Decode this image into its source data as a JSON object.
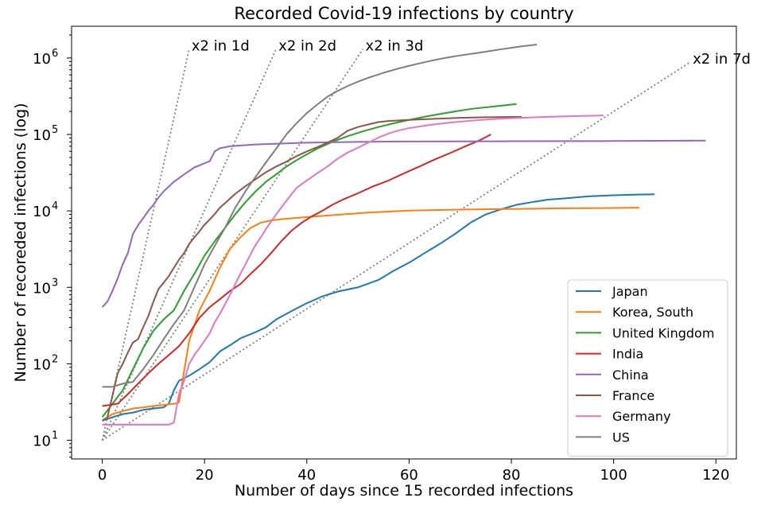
{
  "chart_data": {
    "type": "line",
    "title": "Recorded Covid-19 infections by country",
    "xlabel": "Number of days since 15 recorded infections",
    "ylabel": "Number of recoreded infections (log)",
    "yscale": "log",
    "xlim": [
      -6,
      124
    ],
    "ylim": [
      5.7,
      2600000
    ],
    "x_ticks": [
      0,
      20,
      40,
      60,
      80,
      100,
      120
    ],
    "x_tick_labels": [
      "0",
      "20",
      "40",
      "60",
      "80",
      "100",
      "120"
    ],
    "y_ticks": [
      10,
      100,
      1000,
      10000,
      100000,
      1000000
    ],
    "y_tick_labels": [
      {
        "base": "10",
        "exp": "1"
      },
      {
        "base": "10",
        "exp": "2"
      },
      {
        "base": "10",
        "exp": "3"
      },
      {
        "base": "10",
        "exp": "4"
      },
      {
        "base": "10",
        "exp": "5"
      },
      {
        "base": "10",
        "exp": "6"
      }
    ],
    "grid": false,
    "legend_position": "bottom-right",
    "series": [
      {
        "name": "Japan",
        "color": "#1f77b4",
        "points": [
          [
            0,
            18
          ],
          [
            2,
            20
          ],
          [
            4,
            22
          ],
          [
            6,
            23
          ],
          [
            8,
            25
          ],
          [
            10,
            26
          ],
          [
            12,
            27
          ],
          [
            13,
            30
          ],
          [
            14,
            45
          ],
          [
            15,
            60
          ],
          [
            17,
            70
          ],
          [
            19,
            85
          ],
          [
            21,
            105
          ],
          [
            23,
            145
          ],
          [
            25,
            175
          ],
          [
            27,
            215
          ],
          [
            30,
            260
          ],
          [
            32,
            300
          ],
          [
            34,
            380
          ],
          [
            36,
            450
          ],
          [
            38,
            530
          ],
          [
            40,
            620
          ],
          [
            43,
            760
          ],
          [
            46,
            880
          ],
          [
            50,
            1000
          ],
          [
            54,
            1250
          ],
          [
            57,
            1650
          ],
          [
            60,
            2100
          ],
          [
            63,
            2800
          ],
          [
            66,
            3700
          ],
          [
            69,
            5000
          ],
          [
            72,
            7000
          ],
          [
            75,
            9000
          ],
          [
            78,
            10500
          ],
          [
            81,
            12000
          ],
          [
            84,
            13000
          ],
          [
            87,
            14000
          ],
          [
            90,
            14500
          ],
          [
            95,
            15500
          ],
          [
            100,
            16000
          ],
          [
            104,
            16300
          ],
          [
            108,
            16500
          ]
        ]
      },
      {
        "name": "Korea, South",
        "color": "#ff7f0e",
        "points": [
          [
            0,
            18
          ],
          [
            2,
            22
          ],
          [
            4,
            24
          ],
          [
            6,
            26
          ],
          [
            8,
            27
          ],
          [
            10,
            28
          ],
          [
            12,
            29
          ],
          [
            14,
            30
          ],
          [
            15,
            31
          ],
          [
            16,
            80
          ],
          [
            17,
            200
          ],
          [
            19,
            500
          ],
          [
            21,
            900
          ],
          [
            23,
            1800
          ],
          [
            25,
            3200
          ],
          [
            27,
            4500
          ],
          [
            29,
            6000
          ],
          [
            31,
            7000
          ],
          [
            33,
            7500
          ],
          [
            36,
            7900
          ],
          [
            40,
            8300
          ],
          [
            44,
            8700
          ],
          [
            48,
            9100
          ],
          [
            52,
            9500
          ],
          [
            56,
            9800
          ],
          [
            60,
            10100
          ],
          [
            70,
            10400
          ],
          [
            80,
            10600
          ],
          [
            90,
            10800
          ],
          [
            100,
            10900
          ],
          [
            105,
            11000
          ]
        ]
      },
      {
        "name": "United Kingdom",
        "color": "#2ca02c",
        "points": [
          [
            0,
            20
          ],
          [
            2,
            30
          ],
          [
            4,
            45
          ],
          [
            6,
            85
          ],
          [
            8,
            160
          ],
          [
            10,
            270
          ],
          [
            12,
            380
          ],
          [
            14,
            500
          ],
          [
            16,
            900
          ],
          [
            18,
            1500
          ],
          [
            20,
            2600
          ],
          [
            22,
            4000
          ],
          [
            24,
            6000
          ],
          [
            26,
            9000
          ],
          [
            28,
            13000
          ],
          [
            30,
            18000
          ],
          [
            32,
            24000
          ],
          [
            34,
            30000
          ],
          [
            36,
            38000
          ],
          [
            38,
            46000
          ],
          [
            40,
            55000
          ],
          [
            42,
            65000
          ],
          [
            45,
            80000
          ],
          [
            48,
            95000
          ],
          [
            51,
            110000
          ],
          [
            54,
            125000
          ],
          [
            57,
            140000
          ],
          [
            60,
            155000
          ],
          [
            64,
            175000
          ],
          [
            68,
            195000
          ],
          [
            72,
            215000
          ],
          [
            76,
            230000
          ],
          [
            81,
            250000
          ]
        ]
      },
      {
        "name": "India",
        "color": "#d62728",
        "points": [
          [
            0,
            28
          ],
          [
            3,
            30
          ],
          [
            5,
            40
          ],
          [
            7,
            55
          ],
          [
            9,
            75
          ],
          [
            11,
            100
          ],
          [
            13,
            130
          ],
          [
            15,
            170
          ],
          [
            17,
            250
          ],
          [
            19,
            400
          ],
          [
            21,
            550
          ],
          [
            23,
            700
          ],
          [
            25,
            900
          ],
          [
            27,
            1100
          ],
          [
            29,
            1500
          ],
          [
            31,
            2000
          ],
          [
            33,
            2800
          ],
          [
            35,
            4000
          ],
          [
            37,
            5500
          ],
          [
            39,
            7000
          ],
          [
            41,
            8500
          ],
          [
            43,
            10000
          ],
          [
            45,
            12000
          ],
          [
            47,
            14000
          ],
          [
            50,
            17000
          ],
          [
            53,
            21000
          ],
          [
            56,
            25000
          ],
          [
            59,
            31000
          ],
          [
            62,
            38000
          ],
          [
            65,
            47000
          ],
          [
            68,
            57000
          ],
          [
            71,
            70000
          ],
          [
            74,
            85000
          ],
          [
            76,
            100000
          ]
        ]
      },
      {
        "name": "China",
        "color": "#9467bd",
        "points": [
          [
            0,
            550
          ],
          [
            1,
            650
          ],
          [
            2,
            900
          ],
          [
            3,
            1300
          ],
          [
            4,
            2000
          ],
          [
            5,
            2800
          ],
          [
            6,
            5000
          ],
          [
            7,
            6500
          ],
          [
            8,
            8000
          ],
          [
            9,
            10000
          ],
          [
            10,
            12000
          ],
          [
            11,
            15000
          ],
          [
            12,
            18000
          ],
          [
            14,
            24000
          ],
          [
            16,
            30000
          ],
          [
            18,
            37000
          ],
          [
            20,
            42000
          ],
          [
            21,
            44500
          ],
          [
            22,
            60000
          ],
          [
            23,
            66000
          ],
          [
            25,
            70000
          ],
          [
            30,
            74000
          ],
          [
            40,
            78000
          ],
          [
            50,
            80000
          ],
          [
            60,
            81000
          ],
          [
            80,
            81500
          ],
          [
            100,
            82000
          ],
          [
            118,
            83000
          ]
        ]
      },
      {
        "name": "France",
        "color": "#8c564b",
        "points": [
          [
            0,
            18
          ],
          [
            1,
            20
          ],
          [
            2,
            38
          ],
          [
            3,
            75
          ],
          [
            4,
            100
          ],
          [
            5,
            140
          ],
          [
            6,
            190
          ],
          [
            7,
            210
          ],
          [
            8,
            300
          ],
          [
            9,
            420
          ],
          [
            10,
            650
          ],
          [
            11,
            950
          ],
          [
            12,
            1150
          ],
          [
            13,
            1400
          ],
          [
            14,
            1800
          ],
          [
            15,
            2300
          ],
          [
            16,
            2800
          ],
          [
            17,
            3700
          ],
          [
            18,
            4500
          ],
          [
            19,
            5400
          ],
          [
            20,
            6600
          ],
          [
            21,
            7700
          ],
          [
            22,
            9100
          ],
          [
            23,
            11000
          ],
          [
            24,
            12600
          ],
          [
            25,
            14500
          ],
          [
            26,
            16700
          ],
          [
            28,
            21000
          ],
          [
            30,
            26000
          ],
          [
            32,
            32000
          ],
          [
            34,
            38000
          ],
          [
            36,
            44000
          ],
          [
            38,
            52000
          ],
          [
            40,
            60000
          ],
          [
            42,
            68000
          ],
          [
            44,
            78000
          ],
          [
            46,
            90000
          ],
          [
            48,
            112000
          ],
          [
            50,
            125000
          ],
          [
            52,
            135000
          ],
          [
            54,
            145000
          ],
          [
            56,
            150000
          ],
          [
            60,
            155000
          ],
          [
            65,
            160000
          ],
          [
            70,
            165000
          ],
          [
            75,
            168000
          ],
          [
            82,
            170000
          ]
        ]
      },
      {
        "name": "Germany",
        "color": "#e377c2",
        "points": [
          [
            0,
            16
          ],
          [
            2,
            16
          ],
          [
            6,
            16
          ],
          [
            10,
            16
          ],
          [
            13,
            16
          ],
          [
            14,
            17
          ],
          [
            15,
            40
          ],
          [
            16,
            60
          ],
          [
            17,
            100
          ],
          [
            18,
            130
          ],
          [
            19,
            160
          ],
          [
            20,
            200
          ],
          [
            21,
            250
          ],
          [
            22,
            350
          ],
          [
            23,
            450
          ],
          [
            24,
            600
          ],
          [
            25,
            800
          ],
          [
            26,
            1100
          ],
          [
            27,
            1500
          ],
          [
            28,
            2000
          ],
          [
            29,
            2700
          ],
          [
            30,
            3600
          ],
          [
            31,
            4500
          ],
          [
            32,
            5800
          ],
          [
            33,
            7200
          ],
          [
            34,
            9000
          ],
          [
            35,
            11000
          ],
          [
            36,
            13500
          ],
          [
            37,
            16500
          ],
          [
            38,
            20000
          ],
          [
            40,
            25000
          ],
          [
            42,
            31000
          ],
          [
            44,
            38000
          ],
          [
            46,
            48000
          ],
          [
            48,
            58000
          ],
          [
            50,
            67000
          ],
          [
            52,
            78000
          ],
          [
            54,
            91000
          ],
          [
            56,
            103000
          ],
          [
            58,
            113000
          ],
          [
            60,
            121000
          ],
          [
            64,
            133000
          ],
          [
            68,
            143000
          ],
          [
            72,
            151000
          ],
          [
            76,
            158000
          ],
          [
            80,
            163000
          ],
          [
            85,
            168000
          ],
          [
            90,
            172000
          ],
          [
            95,
            175000
          ],
          [
            98,
            177000
          ]
        ]
      },
      {
        "name": "US",
        "color": "#7f7f7f",
        "points": [
          [
            0,
            50
          ],
          [
            2,
            50
          ],
          [
            4,
            55
          ],
          [
            6,
            58
          ],
          [
            8,
            85
          ],
          [
            10,
            130
          ],
          [
            12,
            210
          ],
          [
            14,
            330
          ],
          [
            16,
            500
          ],
          [
            18,
            1000
          ],
          [
            20,
            2000
          ],
          [
            22,
            3500
          ],
          [
            24,
            6000
          ],
          [
            26,
            11000
          ],
          [
            28,
            18000
          ],
          [
            30,
            28000
          ],
          [
            32,
            43000
          ],
          [
            34,
            65000
          ],
          [
            36,
            100000
          ],
          [
            38,
            140000
          ],
          [
            40,
            190000
          ],
          [
            42,
            245000
          ],
          [
            44,
            310000
          ],
          [
            46,
            370000
          ],
          [
            48,
            430000
          ],
          [
            50,
            490000
          ],
          [
            52,
            550000
          ],
          [
            55,
            640000
          ],
          [
            58,
            730000
          ],
          [
            61,
            820000
          ],
          [
            64,
            910000
          ],
          [
            67,
            1000000
          ],
          [
            70,
            1080000
          ],
          [
            74,
            1180000
          ],
          [
            78,
            1300000
          ],
          [
            82,
            1420000
          ],
          [
            85,
            1500000
          ]
        ]
      }
    ],
    "reference_lines": [
      {
        "label": "x2 in 1d",
        "doubling_days": 1,
        "color": "#808080",
        "x_end": 17
      },
      {
        "label": "x2 in 2d",
        "doubling_days": 2,
        "color": "#808080",
        "x_end": 34
      },
      {
        "label": "x2 in 3d",
        "doubling_days": 3,
        "color": "#808080",
        "x_end": 51
      },
      {
        "label": "x2 in 7d",
        "doubling_days": 7,
        "color": "#808080",
        "x_end": 115
      }
    ],
    "reference_start": {
      "x": 0,
      "y": 10
    }
  }
}
